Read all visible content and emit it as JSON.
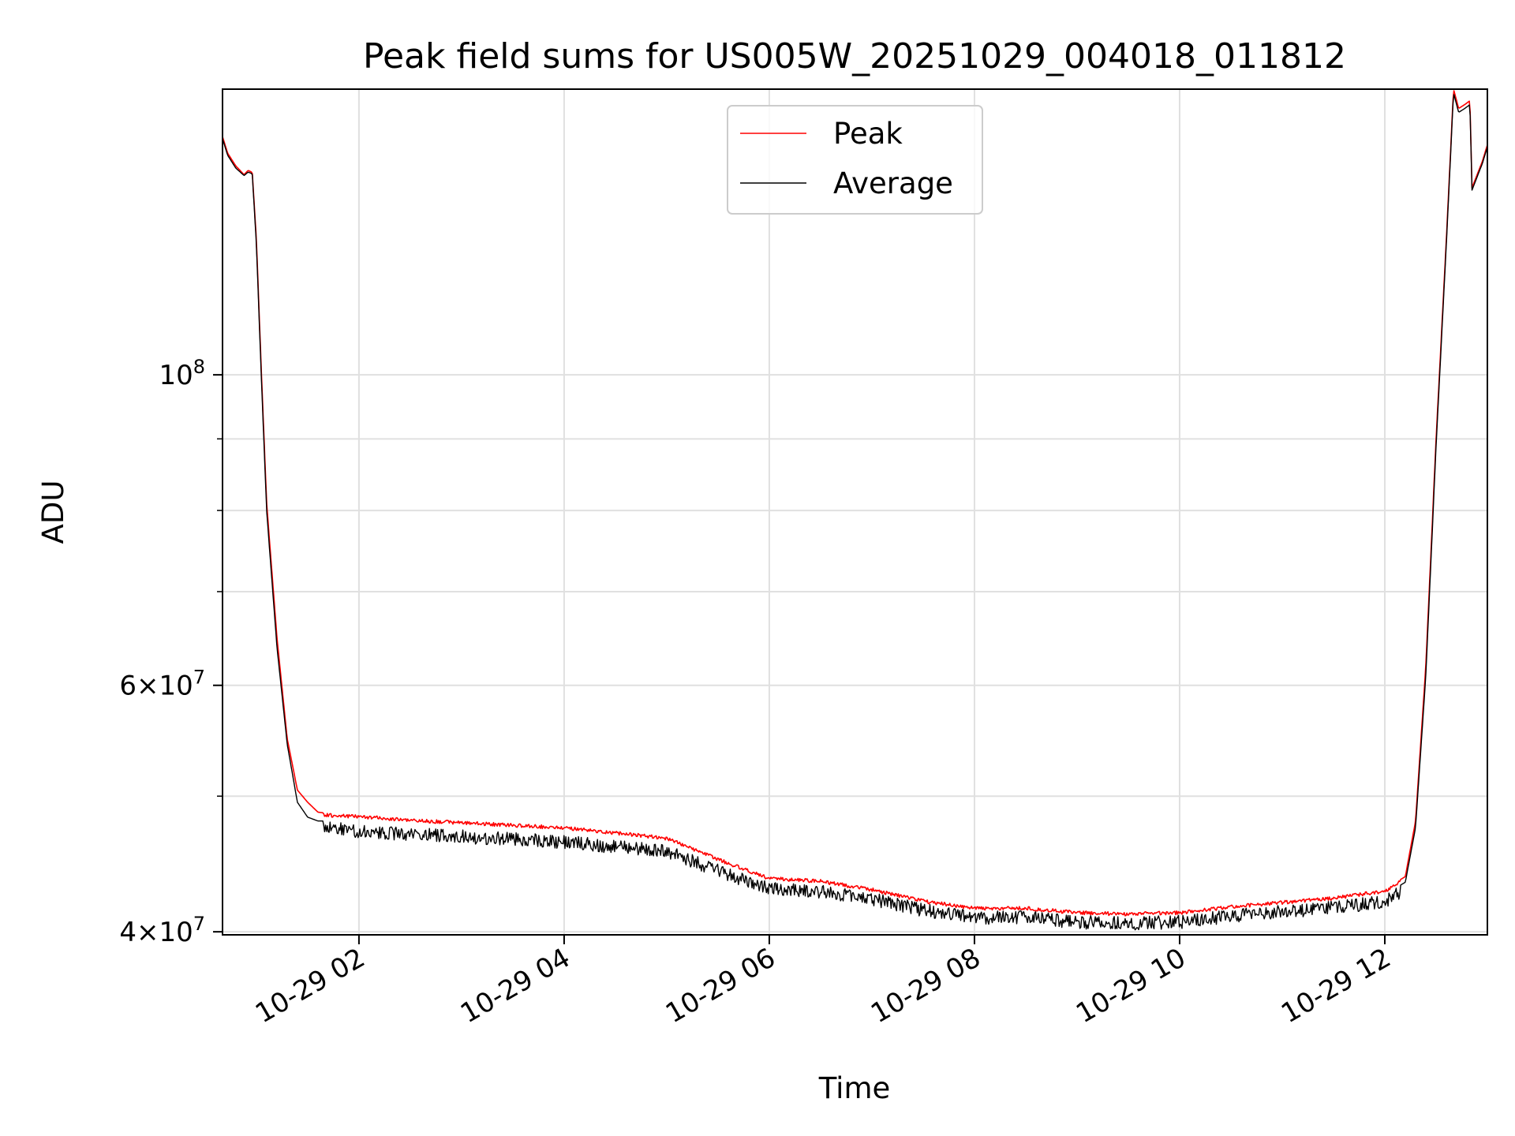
{
  "chart_data": {
    "type": "line",
    "title": "Peak field sums for US005W_20251029_004018_011812",
    "xlabel": "Time",
    "ylabel": "ADU",
    "yscale": "log",
    "xlim": [
      0.67,
      13.0
    ],
    "ylim": [
      39800000,
      160000000
    ],
    "grid": true,
    "legend": {
      "placement": "upper-center",
      "entries": [
        "Peak",
        "Average"
      ]
    },
    "x_ticks": [
      {
        "value": 2,
        "label": "10-29 02"
      },
      {
        "value": 4,
        "label": "10-29 04"
      },
      {
        "value": 6,
        "label": "10-29 06"
      },
      {
        "value": 8,
        "label": "10-29 08"
      },
      {
        "value": 10,
        "label": "10-29 10"
      },
      {
        "value": 12,
        "label": "10-29 12"
      }
    ],
    "y_major_ticks": [
      {
        "value": 40000000,
        "mantissa": "4",
        "exp": "7"
      },
      {
        "value": 60000000,
        "mantissa": "6",
        "exp": "7"
      },
      {
        "value": 100000000,
        "mantissa": "",
        "exp": "8"
      }
    ],
    "y_minor_ticks": [
      50000000,
      70000000,
      80000000,
      90000000
    ],
    "series": [
      {
        "name": "Peak",
        "color": "#ff0000",
        "x": [
          0.67,
          0.72,
          0.8,
          0.88,
          0.92,
          0.96,
          1.0,
          1.05,
          1.1,
          1.2,
          1.3,
          1.4,
          1.5,
          1.6,
          1.7,
          2.0,
          2.5,
          3.0,
          3.5,
          4.0,
          4.5,
          5.0,
          5.5,
          6.0,
          6.5,
          7.0,
          7.5,
          8.0,
          8.5,
          9.0,
          9.5,
          10.0,
          10.5,
          11.0,
          11.5,
          12.0,
          12.2,
          12.3,
          12.4,
          12.5,
          12.6,
          12.67,
          12.72,
          12.78,
          12.83,
          12.85,
          12.9,
          12.95,
          13.0
        ],
        "values": [
          148000000,
          144000000,
          141000000,
          139000000,
          140000000,
          139500000,
          125000000,
          100000000,
          81000000,
          65000000,
          55000000,
          50500000,
          49500000,
          48700000,
          48600000,
          48500000,
          48200000,
          48000000,
          47800000,
          47600000,
          47200000,
          46800000,
          45200000,
          43800000,
          43600000,
          43000000,
          42200000,
          41700000,
          41700000,
          41400000,
          41300000,
          41400000,
          41800000,
          42100000,
          42400000,
          42900000,
          43800000,
          48000000,
          62000000,
          90000000,
          125000000,
          160000000,
          155000000,
          156000000,
          157000000,
          136000000,
          139000000,
          142000000,
          146000000
        ]
      },
      {
        "name": "Average",
        "color": "#000000",
        "x": [
          0.67,
          0.72,
          0.8,
          0.88,
          0.92,
          0.96,
          1.0,
          1.05,
          1.1,
          1.2,
          1.3,
          1.4,
          1.5,
          1.6,
          1.7,
          2.0,
          2.5,
          3.0,
          3.5,
          4.0,
          4.5,
          5.0,
          5.5,
          6.0,
          6.5,
          7.0,
          7.5,
          8.0,
          8.5,
          9.0,
          9.5,
          10.0,
          10.5,
          11.0,
          11.5,
          12.0,
          12.2,
          12.3,
          12.4,
          12.5,
          12.6,
          12.67,
          12.72,
          12.78,
          12.83,
          12.85,
          12.9,
          12.95,
          13.0
        ],
        "values": [
          147500000,
          143500000,
          140500000,
          138800000,
          139600000,
          139200000,
          124000000,
          99000000,
          80000000,
          64000000,
          54500000,
          49500000,
          48300000,
          48000000,
          48000000,
          47700000,
          47500000,
          47300000,
          47100000,
          46900000,
          46500000,
          46200000,
          44700000,
          43400000,
          43200000,
          42700000,
          41900000,
          41400000,
          41400000,
          41100000,
          41000000,
          41100000,
          41500000,
          41800000,
          42100000,
          42500000,
          43400000,
          47500000,
          61000000,
          89000000,
          124000000,
          159000000,
          154000000,
          155000000,
          156000000,
          135500000,
          138500000,
          141500000,
          145500000
        ]
      }
    ]
  }
}
